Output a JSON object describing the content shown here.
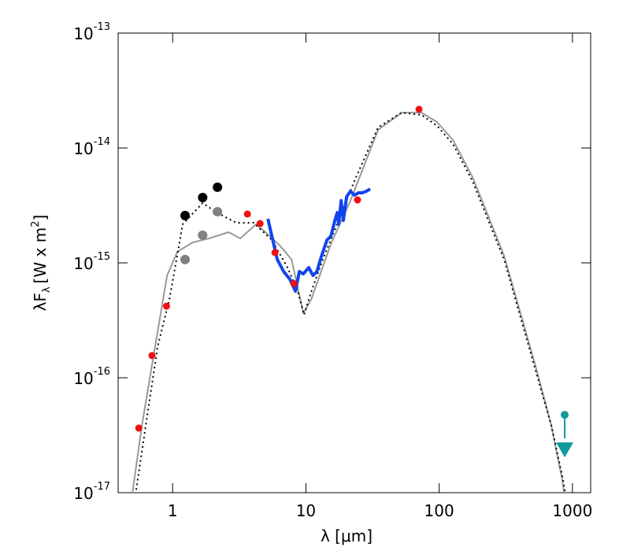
{
  "chart_data": {
    "type": "scatter",
    "x_label": "λ [μm]",
    "y_label": {
      "text": "λF",
      "subscript": "λ",
      "unit": "[W x m",
      "superscript": "2",
      "unit_end": "]"
    },
    "xscale": "log",
    "yscale": "log",
    "xlim": [
      0.39,
      1370
    ],
    "ylim": [
      1e-17,
      1e-13
    ],
    "xticks": [
      1,
      10,
      100,
      1000
    ],
    "yticks": [
      {
        "value": 1e-17,
        "label": "10",
        "exponent": "-17"
      },
      {
        "value": 1e-16,
        "label": "10",
        "exponent": "-16"
      },
      {
        "value": 1e-15,
        "label": "10",
        "exponent": "-15"
      },
      {
        "value": 1e-14,
        "label": "10",
        "exponent": "-14"
      },
      {
        "value": 1e-13,
        "label": "10",
        "exponent": "-13"
      }
    ],
    "series": [
      {
        "color": "#999999",
        "line_style": "solid",
        "line_width": 2,
        "x": [
          0.486,
          0.589,
          0.722,
          0.909,
          1.085,
          1.42,
          1.87,
          2.63,
          3.22,
          4.23,
          5.19,
          6.36,
          7.8,
          9.57,
          11.0,
          15.4,
          21.6,
          34.8,
          52.4,
          73.6,
          96.5,
          127,
          178,
          234,
          307,
          403,
          528,
          693,
          839,
          886
        ],
        "values": [
          8e-18,
          3.88e-17,
          1.6e-16,
          7.77e-16,
          1.25e-15,
          1.51e-15,
          1.63e-15,
          1.85e-15,
          1.63e-15,
          2.17e-15,
          1.77e-15,
          1.42e-15,
          1.07e-15,
          3.65e-16,
          4.84e-16,
          1.46e-15,
          3.48e-15,
          1.44e-14,
          2.03e-14,
          2.03e-14,
          1.68e-14,
          1.17e-14,
          5.58e-15,
          2.54e-15,
          1.15e-15,
          3.82e-16,
          1.27e-16,
          3.88e-17,
          1.29e-17,
          8e-18
        ]
      },
      {
        "color": "#000000",
        "line_style": "dotted",
        "line_width": 2,
        "x": [
          0.514,
          0.63,
          0.772,
          0.947,
          1.19,
          1.68,
          2.14,
          3.01,
          4.06,
          5.55,
          7.28,
          8.69,
          9.69,
          11.0,
          13.4,
          17.6,
          23.1,
          34.8,
          52.4,
          73.6,
          96.5,
          127,
          178,
          234,
          307,
          403,
          528,
          693,
          851,
          910
        ],
        "values": [
          8e-18,
          3.88e-17,
          1.88e-16,
          4.84e-16,
          2.17e-15,
          3.32e-15,
          2.74e-15,
          2.23e-15,
          2.23e-15,
          1.58e-15,
          9.1e-16,
          5.66e-16,
          3.53e-16,
          5.66e-16,
          1.07e-15,
          2.34e-15,
          5.16e-15,
          1.51e-14,
          2.03e-14,
          1.94e-14,
          1.56e-14,
          1.08e-14,
          5.16e-15,
          2.34e-15,
          1.07e-15,
          3.53e-16,
          1.17e-16,
          3.88e-17,
          1.29e-17,
          8e-18
        ]
      },
      {
        "color": "#1144ee",
        "line_style": "solid",
        "line_width": 4,
        "x": [
          5.19,
          5.55,
          6.1,
          6.81,
          7.59,
          8.35,
          8.93,
          9.57,
          10.5,
          11.3,
          12.1,
          13.1,
          14.4,
          15.4,
          16.5,
          17.2,
          17.6,
          18.4,
          19.1,
          20.2,
          21.6,
          23.1,
          24.8,
          26.5,
          28.4,
          30.4
        ],
        "values": [
          2.42e-15,
          1.71e-15,
          1.07e-15,
          8.41e-16,
          7.18e-16,
          5.66e-16,
          8.41e-16,
          8.02e-16,
          9.1e-16,
          7.77e-16,
          8.41e-16,
          1.15e-15,
          1.58e-15,
          1.71e-15,
          2.34e-15,
          2.74e-15,
          2.17e-15,
          3.48e-15,
          2.34e-15,
          3.76e-15,
          4.2e-15,
          3.88e-15,
          4.07e-15,
          4.07e-15,
          4.2e-15,
          4.4e-15
        ]
      },
      {
        "color": "#808080",
        "marker": "circle",
        "marker_size": 6,
        "x": [
          1.24,
          1.68,
          2.17
        ],
        "values": [
          1.07e-15,
          1.74e-15,
          2.79e-15
        ]
      },
      {
        "color": "#000000",
        "marker": "circle",
        "marker_size": 6,
        "x": [
          1.24,
          1.68,
          2.17
        ],
        "values": [
          2.58e-15,
          3.7e-15,
          4.55e-15
        ]
      },
      {
        "color": "#ee1111",
        "marker": "circle",
        "marker_size": 4.5,
        "x": [
          0.557,
          0.7,
          0.9,
          3.64,
          4.53,
          5.86,
          8.13,
          24.4,
          70.6
        ],
        "values": [
          3.65e-17,
          1.56e-16,
          4.2e-16,
          2.66e-15,
          2.2e-15,
          1.23e-15,
          6.6e-16,
          3.53e-15,
          2.17e-14
        ]
      },
      {
        "color": "#119999",
        "marker": "circle",
        "marker_size": 5,
        "upper_limit": true,
        "x": [
          875
        ],
        "values": [
          4.76e-17
        ]
      }
    ]
  }
}
